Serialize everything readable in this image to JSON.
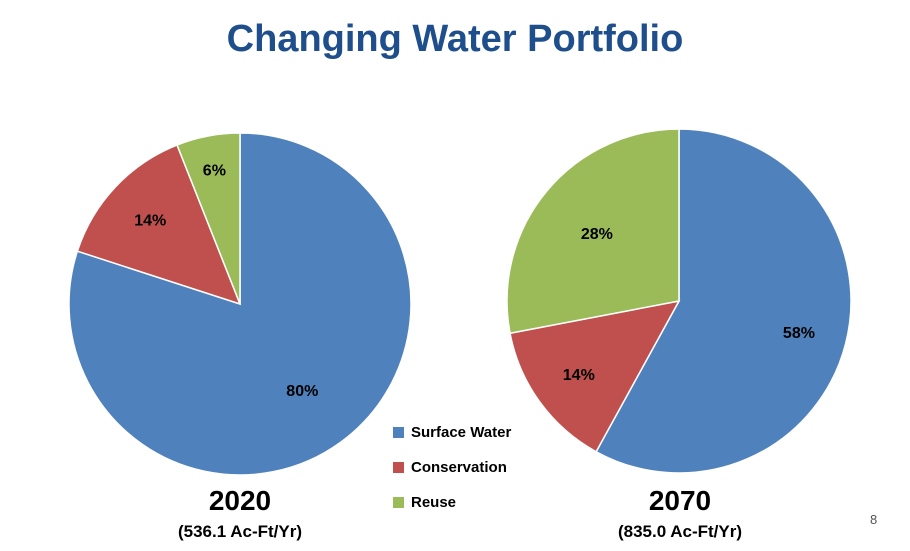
{
  "title": "Changing Water Portfolio",
  "page_number": "8",
  "colors": {
    "surface_water": "#4f81bd",
    "conservation": "#c0504d",
    "reuse": "#9bbb59",
    "title": "#1f4e8c"
  },
  "chart_data": [
    {
      "type": "pie",
      "title": "2020",
      "subtitle": "(536.1 Ac-Ft/Yr)",
      "categories": [
        "Surface Water",
        "Conservation",
        "Reuse"
      ],
      "values": [
        80,
        14,
        6
      ],
      "labels": [
        "80%",
        "14%",
        "6%"
      ]
    },
    {
      "type": "pie",
      "title": "2070",
      "subtitle": "(835.0 Ac-Ft/Yr)",
      "categories": [
        "Surface Water",
        "Conservation",
        "Reuse"
      ],
      "values": [
        58,
        14,
        28
      ],
      "labels": [
        "58%",
        "14%",
        "28%"
      ]
    }
  ],
  "legend": {
    "items": [
      {
        "label": "Surface Water",
        "color": "#4f81bd"
      },
      {
        "label": "Conservation",
        "color": "#c0504d"
      },
      {
        "label": "Reuse",
        "color": "#9bbb59"
      }
    ]
  }
}
